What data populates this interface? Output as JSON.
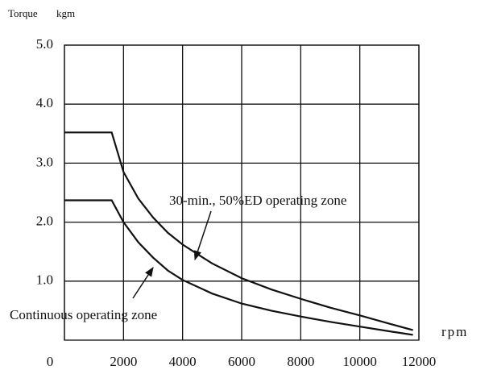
{
  "chart_data": {
    "type": "line",
    "ylabel": "Torque",
    "yunit": "kgm",
    "xlabel": "rpm",
    "x": [
      0,
      1600,
      2000,
      2500,
      3000,
      3500,
      4000,
      5000,
      6000,
      7000,
      8000,
      9000,
      10000,
      11000,
      11800
    ],
    "series": [
      {
        "name": "30-min., 50%ED operating zone",
        "color": "#111111",
        "values": [
          3.52,
          3.52,
          2.85,
          2.4,
          2.08,
          1.82,
          1.62,
          1.3,
          1.05,
          0.86,
          0.7,
          0.55,
          0.42,
          0.28,
          0.17
        ]
      },
      {
        "name": "Continuous operating zone",
        "color": "#111111",
        "values": [
          2.37,
          2.37,
          2.0,
          1.66,
          1.4,
          1.18,
          1.02,
          0.79,
          0.62,
          0.5,
          0.4,
          0.31,
          0.23,
          0.15,
          0.09
        ]
      }
    ],
    "xlim": [
      0,
      12000
    ],
    "xticks": [
      0,
      2000,
      4000,
      6000,
      8000,
      10000,
      12000
    ],
    "ylim": [
      0,
      5
    ],
    "yticks": [
      {
        "value": 1,
        "label": "1.0"
      },
      {
        "value": 2,
        "label": "2.0"
      },
      {
        "value": 3,
        "label": "3.0"
      },
      {
        "value": 4,
        "label": "4.0"
      },
      {
        "value": 5,
        "label": "5.0"
      }
    ],
    "grid": true
  }
}
